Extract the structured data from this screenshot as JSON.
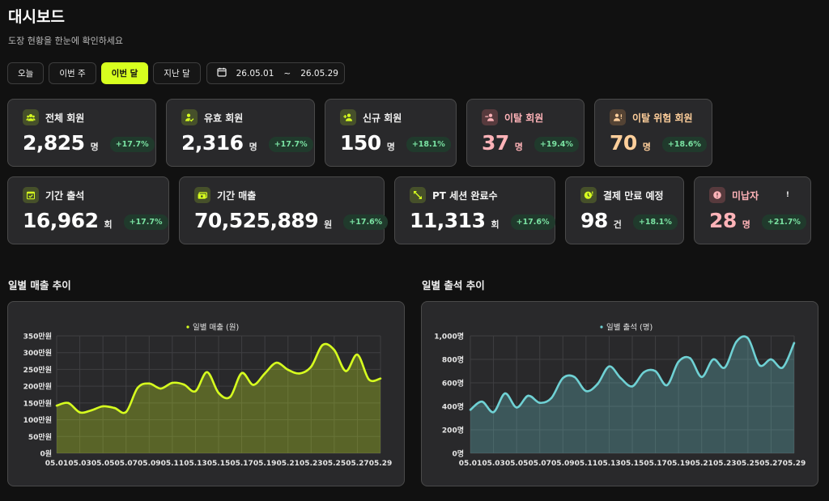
{
  "header": {
    "title": "대시보드",
    "subtitle": "도장 현황을 한눈에 확인하세요"
  },
  "filters": {
    "buttons": [
      "오늘",
      "이번 주",
      "이번 달",
      "지난 달"
    ],
    "active": "이번 달",
    "date_from": "26.05.01",
    "date_sep": "~",
    "date_to": "26.05.29"
  },
  "cards": [
    {
      "label": "전체 회원",
      "value": "2,825",
      "unit": "명",
      "change": "+17.7%",
      "icon": "users-icon",
      "tone": "lime"
    },
    {
      "label": "유효 회원",
      "value": "2,316",
      "unit": "명",
      "change": "+17.7%",
      "icon": "user-check-icon",
      "tone": "lime"
    },
    {
      "label": "신규 회원",
      "value": "150",
      "unit": "명",
      "change": "+18.1%",
      "icon": "user-plus-icon",
      "tone": "lime"
    },
    {
      "label": "이탈 회원",
      "value": "37",
      "unit": "명",
      "change": "+19.4%",
      "icon": "user-minus-icon",
      "tone": "red"
    },
    {
      "label": "이탈 위험 회원",
      "value": "70",
      "unit": "명",
      "change": "+18.6%",
      "icon": "user-alert-icon",
      "tone": "orange"
    },
    {
      "label": "기간 출석",
      "value": "16,962",
      "unit": "회",
      "change": "+17.7%",
      "icon": "calendar-check-icon",
      "tone": "lime"
    },
    {
      "label": "기간 매출",
      "value": "70,525,889",
      "unit": "원",
      "change": "+17.6%",
      "icon": "cash-icon",
      "tone": "lime"
    },
    {
      "label": "PT 세션 완료수",
      "value": "11,313",
      "unit": "회",
      "change": "+17.6%",
      "icon": "expand-arrows-icon",
      "tone": "lime"
    },
    {
      "label": "결제 만료 예정",
      "value": "98",
      "unit": "건",
      "change": "+18.1%",
      "icon": "clock-alert-icon",
      "tone": "lime"
    },
    {
      "label": "미납자",
      "value": "28",
      "unit": "명",
      "change": "+21.7%",
      "icon": "alert-circle-icon",
      "tone": "red",
      "extra": "!"
    }
  ],
  "sections": {
    "revenue_title": "일별 매출 추이",
    "attendance_title": "일별 출석 추이"
  },
  "chart_data": [
    {
      "type": "area",
      "title": "",
      "legend": "일별 매출 (원)",
      "color": "#d7ff1f",
      "x_ticks": [
        "05.01",
        "05.03",
        "05.05",
        "05.07",
        "05.09",
        "05.11",
        "05.13",
        "05.15",
        "05.17",
        "05.19",
        "05.21",
        "05.23",
        "05.25",
        "05.27",
        "05.29"
      ],
      "y_ticks": [
        "0원",
        "50만원",
        "100만원",
        "150만원",
        "200만원",
        "250만원",
        "300만원",
        "350만원"
      ],
      "ylim": [
        0,
        3500000
      ],
      "x": [
        "05.01",
        "05.02",
        "05.03",
        "05.04",
        "05.05",
        "05.06",
        "05.07",
        "05.08",
        "05.09",
        "05.10",
        "05.11",
        "05.12",
        "05.13",
        "05.14",
        "05.15",
        "05.16",
        "05.17",
        "05.18",
        "05.19",
        "05.20",
        "05.21",
        "05.22",
        "05.23",
        "05.24",
        "05.25",
        "05.26",
        "05.27",
        "05.28",
        "05.29"
      ],
      "values": [
        1420000,
        1500000,
        1220000,
        1280000,
        1400000,
        1350000,
        1230000,
        1950000,
        2080000,
        1930000,
        2100000,
        2050000,
        1850000,
        2420000,
        1800000,
        1680000,
        2390000,
        2040000,
        2380000,
        2700000,
        2490000,
        2380000,
        2580000,
        3230000,
        3080000,
        2450000,
        2940000,
        2200000,
        2230000
      ]
    },
    {
      "type": "area",
      "title": "",
      "legend": "일별 출석 (명)",
      "color": "#6fd1d4",
      "x_ticks": [
        "05.01",
        "05.03",
        "05.05",
        "05.07",
        "05.09",
        "05.11",
        "05.13",
        "05.15",
        "05.17",
        "05.19",
        "05.21",
        "05.23",
        "05.25",
        "05.27",
        "05.29"
      ],
      "y_ticks": [
        "0명",
        "200명",
        "400명",
        "600명",
        "800명",
        "1,000명"
      ],
      "ylim": [
        0,
        1000
      ],
      "x": [
        "05.01",
        "05.02",
        "05.03",
        "05.04",
        "05.05",
        "05.06",
        "05.07",
        "05.08",
        "05.09",
        "05.10",
        "05.11",
        "05.12",
        "05.13",
        "05.14",
        "05.15",
        "05.16",
        "05.17",
        "05.18",
        "05.19",
        "05.20",
        "05.21",
        "05.22",
        "05.23",
        "05.24",
        "05.25",
        "05.26",
        "05.27",
        "05.28",
        "05.29"
      ],
      "values": [
        370,
        440,
        350,
        510,
        390,
        490,
        430,
        470,
        640,
        650,
        530,
        590,
        740,
        640,
        570,
        690,
        700,
        580,
        780,
        810,
        650,
        800,
        730,
        950,
        980,
        750,
        800,
        730,
        940
      ]
    }
  ]
}
